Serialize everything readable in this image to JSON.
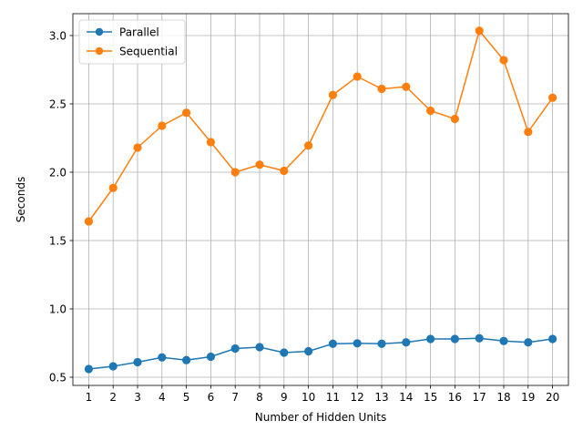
{
  "chart_data": {
    "type": "line",
    "title": "",
    "xlabel": "Number of Hidden Units",
    "ylabel": "Seconds",
    "x": [
      1,
      2,
      3,
      4,
      5,
      6,
      7,
      8,
      9,
      10,
      11,
      12,
      13,
      14,
      15,
      16,
      17,
      18,
      19,
      20
    ],
    "xlim": [
      0.35,
      20.65
    ],
    "ylim": [
      0.44,
      3.16
    ],
    "yticks": [
      0.5,
      1.0,
      1.5,
      2.0,
      2.5,
      3.0
    ],
    "ytick_labels": [
      "0.5",
      "1.0",
      "1.5",
      "2.0",
      "2.5",
      "3.0"
    ],
    "grid": true,
    "legend_position": "upper-left",
    "series": [
      {
        "name": "Parallel",
        "color": "#1f77b4",
        "marker": "circle",
        "values": [
          0.56,
          0.58,
          0.61,
          0.645,
          0.625,
          0.65,
          0.71,
          0.72,
          0.68,
          0.69,
          0.745,
          0.748,
          0.745,
          0.755,
          0.78,
          0.78,
          0.785,
          0.765,
          0.755,
          0.78
        ]
      },
      {
        "name": "Sequential",
        "color": "#ff7f0e",
        "marker": "circle",
        "values": [
          1.64,
          1.885,
          2.18,
          2.34,
          2.435,
          2.22,
          2.0,
          2.055,
          2.01,
          2.195,
          2.565,
          2.7,
          2.61,
          2.625,
          2.45,
          2.39,
          3.035,
          2.82,
          2.295,
          2.545
        ]
      }
    ]
  }
}
